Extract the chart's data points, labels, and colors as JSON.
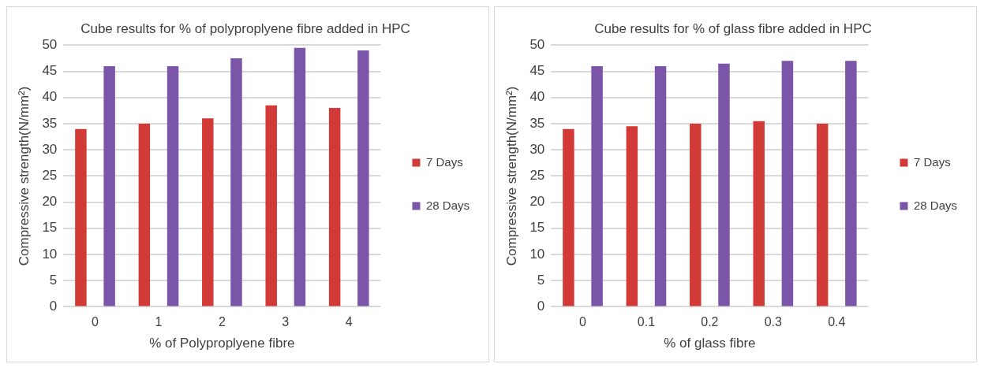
{
  "chart_data": [
    {
      "type": "bar",
      "title": "Cube results for % of polyproplyene fibre added in HPC",
      "xlabel": "% of Polyproplyene fibre",
      "ylabel": "Compressive strength(N/mm²)",
      "categories": [
        "0",
        "1",
        "2",
        "3",
        "4"
      ],
      "series": [
        {
          "name": "7 Days",
          "color": "#d13a36",
          "values": [
            34,
            35,
            36,
            38.5,
            38
          ]
        },
        {
          "name": "28 Days",
          "color": "#7b55a8",
          "values": [
            46,
            46,
            47.5,
            49.5,
            49
          ]
        }
      ],
      "ylim": [
        0,
        50
      ],
      "yticks": [
        0,
        5,
        10,
        15,
        20,
        25,
        30,
        35,
        40,
        45,
        50
      ],
      "grid": "y",
      "legend": "right"
    },
    {
      "type": "bar",
      "title": "Cube results for % of glass fibre added in HPC",
      "xlabel": "% of glass fibre",
      "ylabel": "Compressive strength(N/mm²)",
      "categories": [
        "0",
        "0.1",
        "0.2",
        "0.3",
        "0.4"
      ],
      "series": [
        {
          "name": "7 Days",
          "color": "#d13a36",
          "values": [
            34,
            34.5,
            35,
            35.5,
            35
          ]
        },
        {
          "name": "28 Days",
          "color": "#7b55a8",
          "values": [
            46,
            46,
            46.5,
            47,
            47
          ]
        }
      ],
      "ylim": [
        0,
        50
      ],
      "yticks": [
        0,
        5,
        10,
        15,
        20,
        25,
        30,
        35,
        40,
        45,
        50
      ],
      "grid": "y",
      "legend": "right"
    }
  ]
}
